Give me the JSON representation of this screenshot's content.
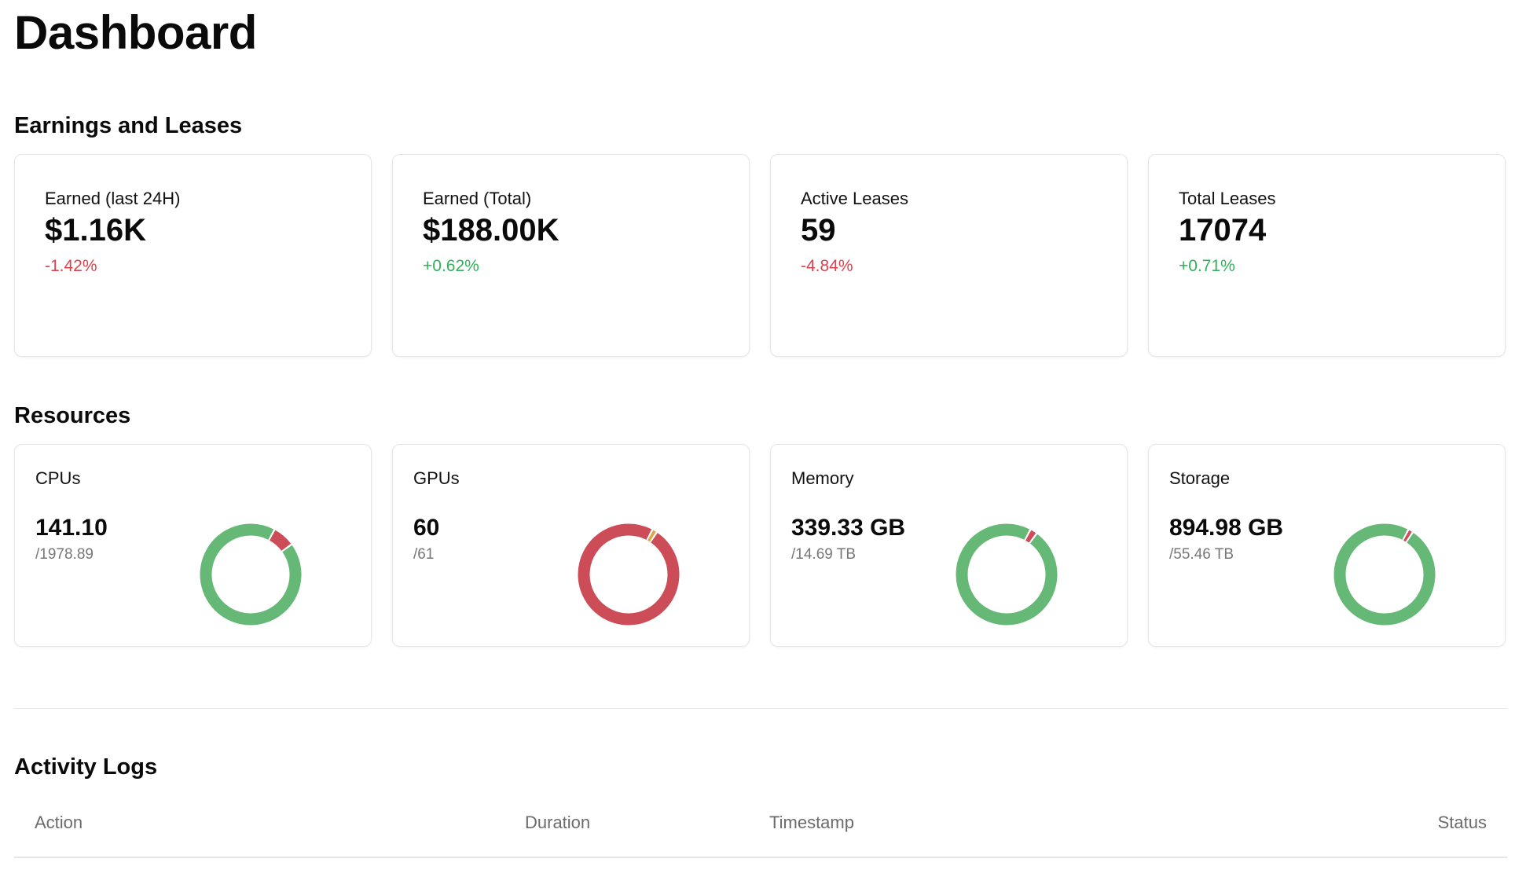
{
  "page": {
    "title": "Dashboard"
  },
  "earnings": {
    "title": "Earnings and Leases",
    "cards": [
      {
        "label": "Earned (last 24H)",
        "value": "$1.16K",
        "change": "-1.42%",
        "trend": "down"
      },
      {
        "label": "Earned (Total)",
        "value": "$188.00K",
        "change": "+0.62%",
        "trend": "up"
      },
      {
        "label": "Active Leases",
        "value": "59",
        "change": "-4.84%",
        "trend": "down"
      },
      {
        "label": "Total Leases",
        "value": "17074",
        "change": "+0.71%",
        "trend": "up"
      }
    ]
  },
  "resources": {
    "title": "Resources",
    "cards": [
      {
        "label": "CPUs",
        "value": "141.10",
        "sub": "/1978.89",
        "segments": [
          {
            "fraction": 0.071,
            "color": "#cc4c57"
          },
          {
            "fraction": 0.929,
            "color": "#66b877"
          }
        ]
      },
      {
        "label": "GPUs",
        "value": "60",
        "sub": "/61",
        "segments": [
          {
            "fraction": 0.016,
            "color": "#e0a545"
          },
          {
            "fraction": 0.984,
            "color": "#cc4c57"
          }
        ]
      },
      {
        "label": "Memory",
        "value": "339.33 GB",
        "sub": "/14.69 TB",
        "segments": [
          {
            "fraction": 0.023,
            "color": "#cc4c57"
          },
          {
            "fraction": 0.977,
            "color": "#66b877"
          }
        ]
      },
      {
        "label": "Storage",
        "value": "894.98 GB",
        "sub": "/55.46 TB",
        "segments": [
          {
            "fraction": 0.016,
            "color": "#cc4c57"
          },
          {
            "fraction": 0.984,
            "color": "#66b877"
          }
        ]
      }
    ]
  },
  "activity": {
    "title": "Activity Logs",
    "columns": {
      "action": "Action",
      "duration": "Duration",
      "timestamp": "Timestamp",
      "status": "Status"
    },
    "rows": []
  },
  "colors": {
    "up": "#2fb35a",
    "down": "#d9434d",
    "available": "#66b877",
    "used": "#cc4c57",
    "gpu_partial": "#e0a545"
  }
}
